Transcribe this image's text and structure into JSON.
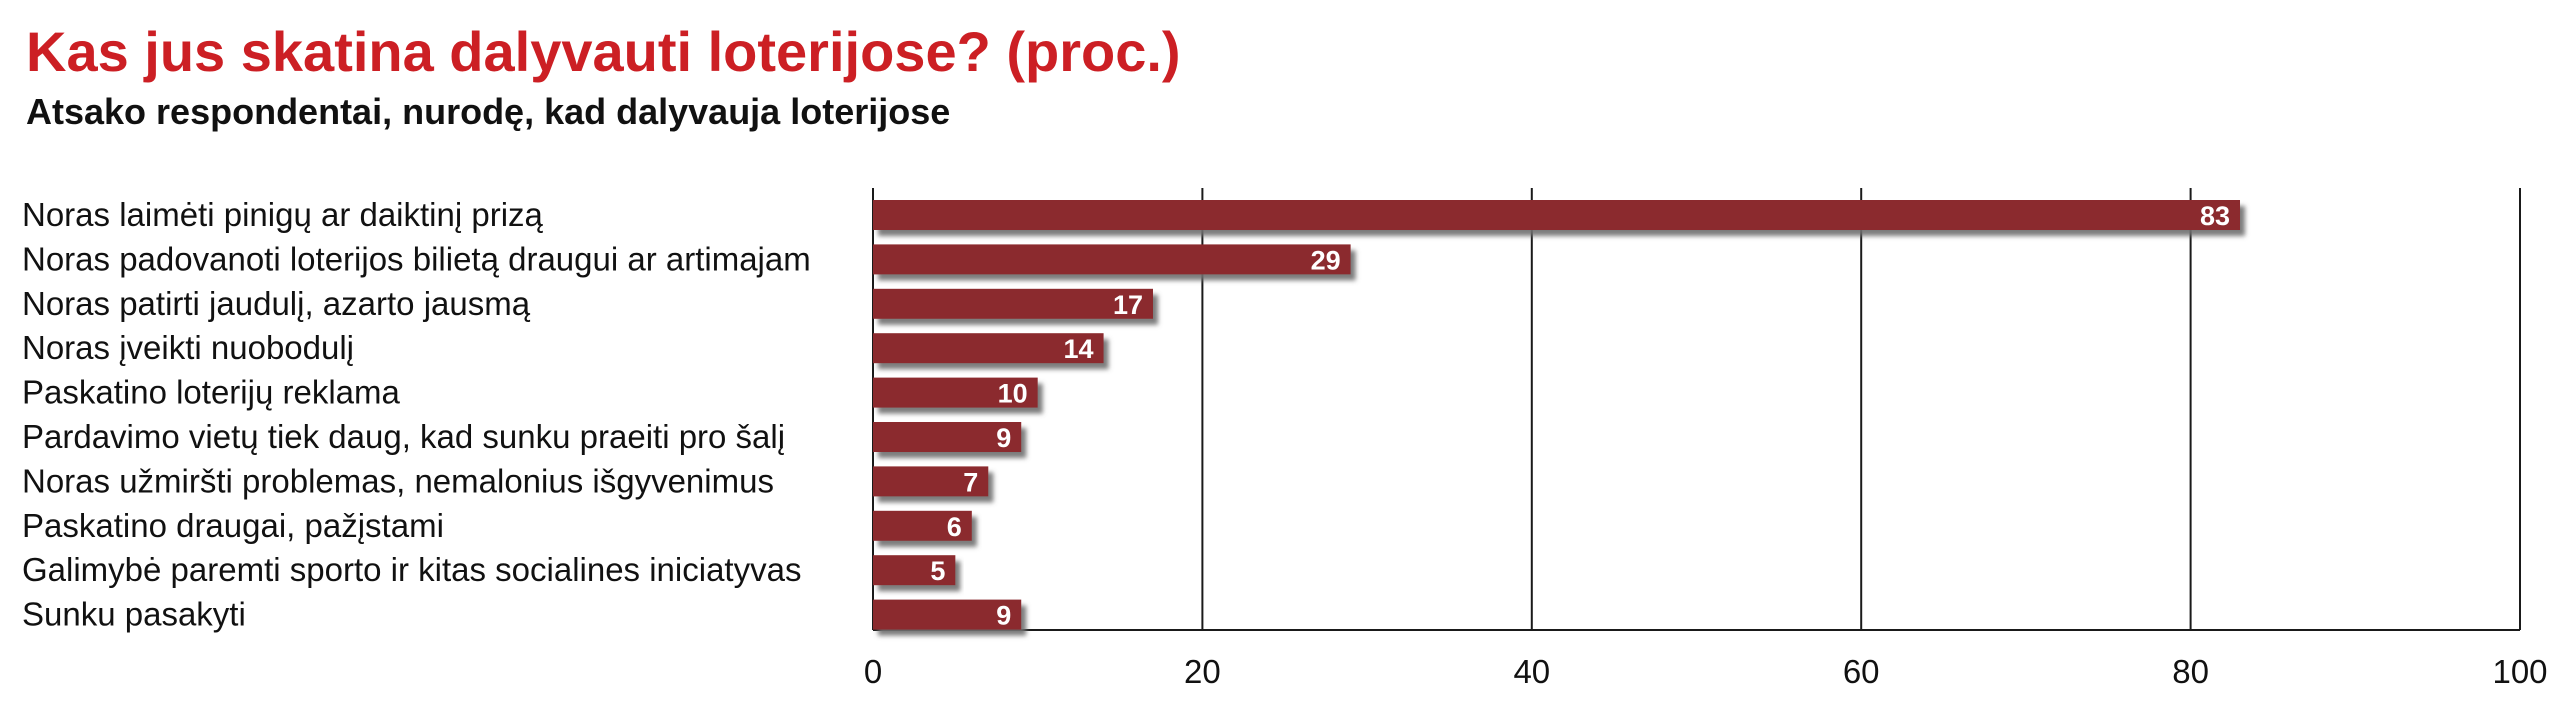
{
  "title": "Kas jus skatina dalyvauti loterijose? (proc.)",
  "subtitle": "Atsako respondentai, nurodę, kad dalyvauja loterijose",
  "colors": {
    "bar": "#8b2b2e",
    "title": "#cc1f24",
    "shadow": "#6e6e6e",
    "grid": "#1a1a1a"
  },
  "chart_data": {
    "type": "bar",
    "orientation": "horizontal",
    "title": "Kas jus skatina dalyvauti loterijose? (proc.)",
    "subtitle": "Atsako respondentai, nurodę, kad dalyvauja loterijose",
    "categories": [
      "Noras laimėti pinigų ar daiktinį prizą",
      "Noras padovanoti loterijos bilietą draugui ar artimajam",
      "Noras patirti jaudulį, azarto jausmą",
      "Noras įveikti nuobodulį",
      "Paskatino loterijų reklama",
      "Pardavimo vietų tiek daug, kad sunku praeiti pro šalį",
      "Noras užmiršti problemas, nemalonius išgyvenimus",
      "Paskatino draugai, pažįstami",
      "Galimybė paremti sporto ir kitas socialines iniciatyvas",
      "Sunku pasakyti"
    ],
    "values": [
      83,
      29,
      17,
      14,
      10,
      9,
      7,
      6,
      5,
      9
    ],
    "xlim": [
      0,
      100
    ],
    "xticks": [
      0,
      20,
      40,
      60,
      80,
      100
    ],
    "grid": true,
    "data_labels": true
  }
}
